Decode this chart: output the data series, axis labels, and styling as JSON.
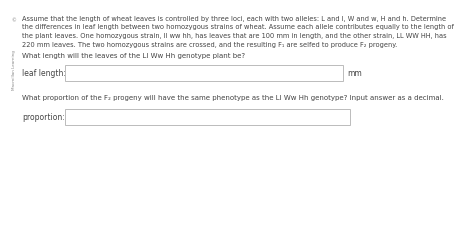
{
  "bg_color": "#ffffff",
  "macmillan_text": "Macmillan Learning",
  "paragraph_line1": "Assume that the length of wheat leaves is controlled by three loci, each with two alleles: L and l, W and w, H and h. Determine",
  "paragraph_line2": "the differences in leaf length between two homozygous strains of wheat. Assume each allele contributes equally to the length of",
  "paragraph_line3": "the plant leaves. One homozygous strain, ll ww hh, has leaves that are 100 mm in length, and the other strain, LL WW HH, has",
  "paragraph_line4": "220 mm leaves. The two homozygous strains are crossed, and the resulting F₁ are selfed to produce F₂ progeny.",
  "question1": "What length will the leaves of the Ll Ww Hh genotype plant be?",
  "label1": "leaf length:",
  "unit1": "mm",
  "question2": "What proportion of the F₂ progeny will have the same phenotype as the Ll Ww Hh genotype? Input answer as a decimal.",
  "label2": "proportion:",
  "box_color": "#ffffff",
  "box_border": "#bbbbbb",
  "text_color": "#444444",
  "sidebar_color": "#888888",
  "font_size_para": 4.8,
  "font_size_label": 5.5,
  "font_size_question": 5.0,
  "font_size_sidebar": 3.0
}
